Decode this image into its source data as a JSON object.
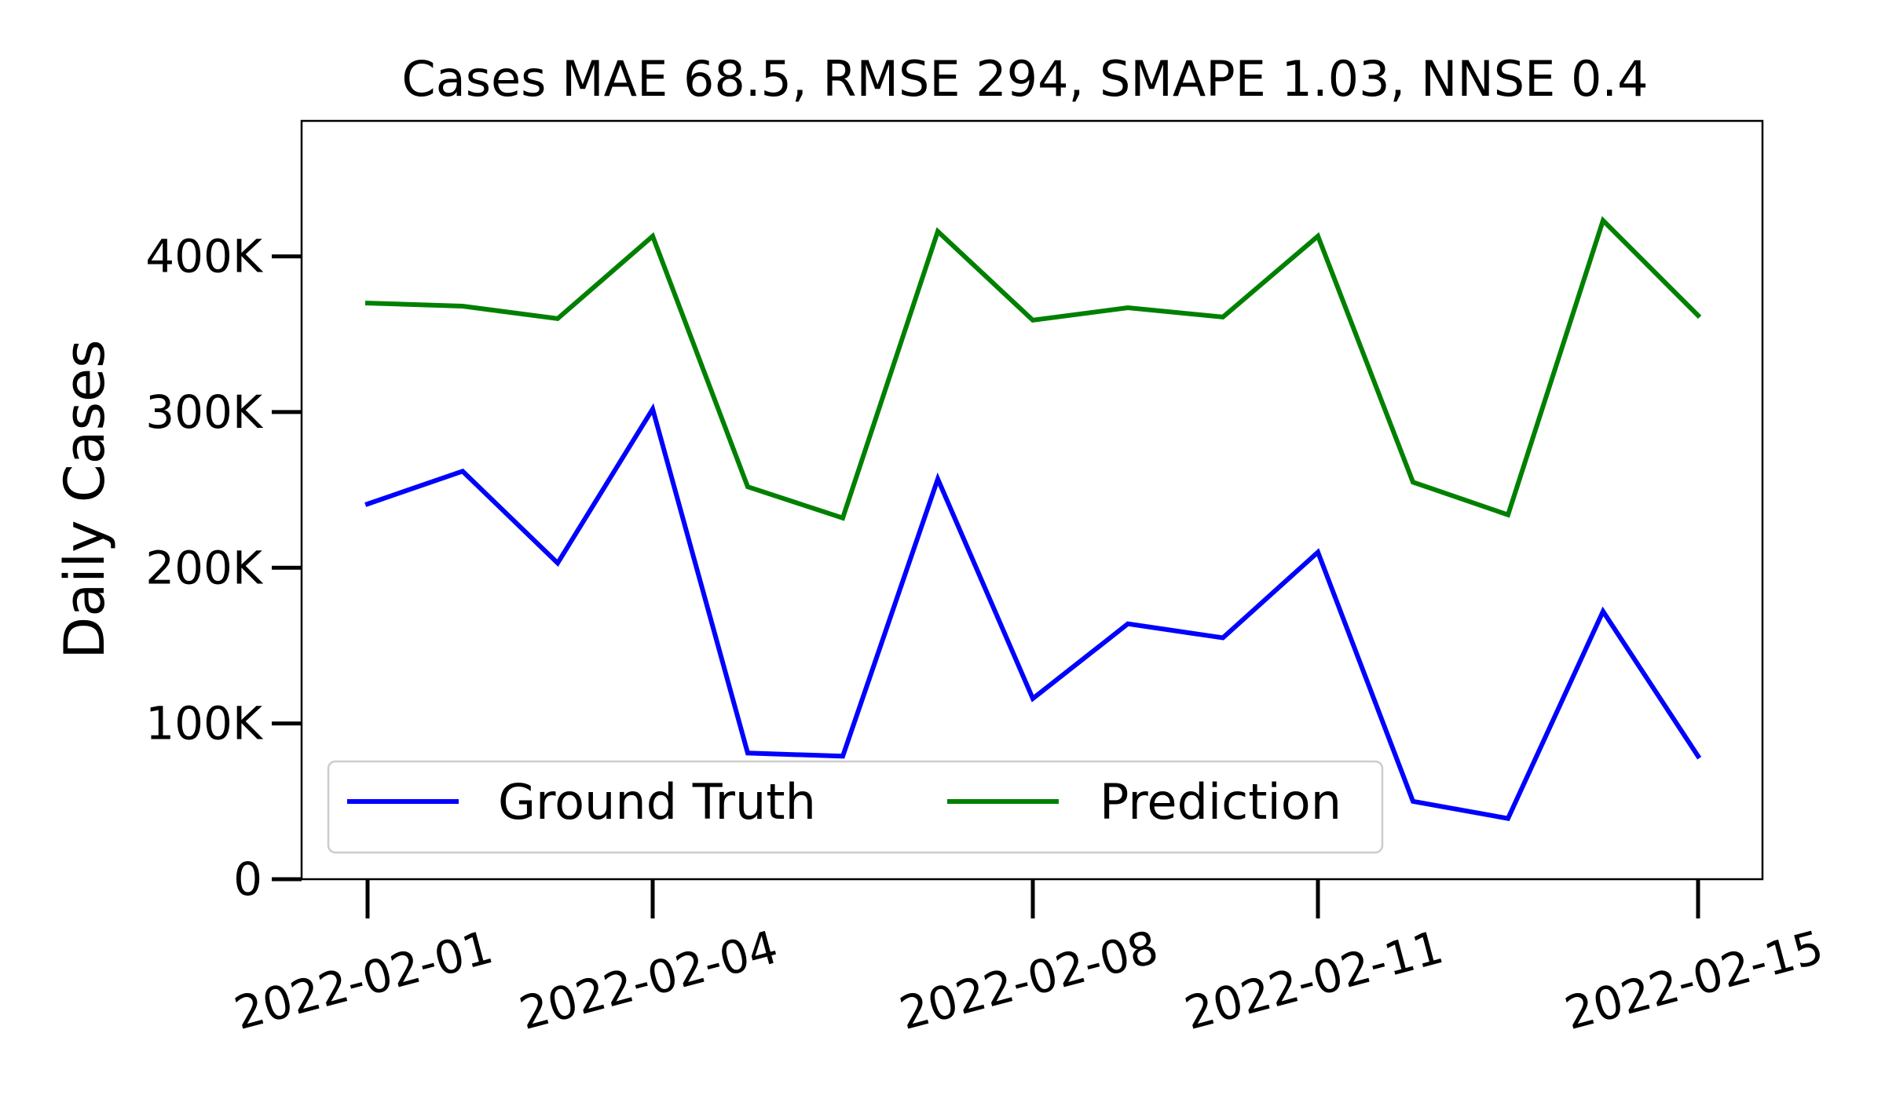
{
  "chart_data": {
    "type": "line",
    "title": "Cases MAE 68.5, RMSE 294, SMAPE 1.03, NNSE 0.4",
    "xlabel": "",
    "ylabel": "Daily Cases",
    "x": [
      "2022-02-01",
      "2022-02-02",
      "2022-02-03",
      "2022-02-04",
      "2022-02-05",
      "2022-02-06",
      "2022-02-07",
      "2022-02-08",
      "2022-02-09",
      "2022-02-10",
      "2022-02-11",
      "2022-02-12",
      "2022-02-13",
      "2022-02-14",
      "2022-02-15"
    ],
    "x_ticks": [
      "2022-02-01",
      "2022-02-04",
      "2022-02-08",
      "2022-02-11",
      "2022-02-15"
    ],
    "ylim": [
      0,
      487000
    ],
    "y_ticks": [
      0,
      100000,
      200000,
      300000,
      400000
    ],
    "y_tick_labels": [
      "0",
      "100K",
      "200K",
      "300K",
      "400K"
    ],
    "grid": false,
    "legend": "lower-left",
    "series": [
      {
        "name": "Ground Truth",
        "color": "#0000ff",
        "values": [
          241000,
          262000,
          203000,
          302000,
          81000,
          79000,
          257000,
          116000,
          164000,
          155000,
          210000,
          50000,
          39000,
          172000,
          79000
        ]
      },
      {
        "name": "Prediction",
        "color": "#008000",
        "values": [
          370000,
          368000,
          360000,
          413000,
          252000,
          232000,
          416000,
          359000,
          367000,
          361000,
          413000,
          255000,
          234000,
          423000,
          362000
        ]
      }
    ]
  }
}
